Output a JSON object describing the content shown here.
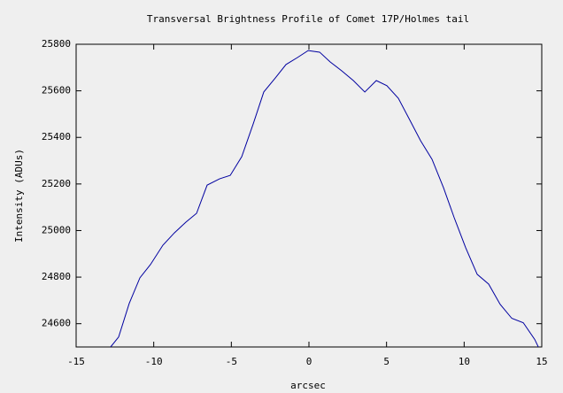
{
  "chart_data": {
    "type": "line",
    "title": "Transversal Brightness Profile of Comet 17P/Holmes tail",
    "x_label": "arcsec",
    "y_label": "Intensity (ADUs)",
    "x": [
      -12.78,
      -12.26,
      -11.58,
      -10.89,
      -10.21,
      -9.41,
      -8.67,
      -7.93,
      -7.24,
      -6.56,
      -5.76,
      -5.07,
      -4.33,
      -3.59,
      -2.91,
      -2.16,
      -1.48,
      -0.74,
      -0.05,
      0.69,
      1.37,
      2.11,
      2.86,
      3.6,
      4.34,
      5.02,
      5.76,
      6.51,
      7.19,
      7.93,
      8.67,
      9.36,
      10.1,
      10.84,
      11.58,
      12.32,
      13.07,
      13.81,
      14.55,
      14.78
    ],
    "series": [
      {
        "color": "#0000a0",
        "values": [
          24500,
          24543,
          24687,
          24797,
          24854,
          24937,
          24990,
          25036,
          25074,
          25195,
          25222,
          25237,
          25317,
          25458,
          25595,
          25656,
          25713,
          25743,
          25773,
          25766,
          25724,
          25686,
          25644,
          25595,
          25644,
          25622,
          25568,
          25473,
          25386,
          25306,
          25184,
          25055,
          24926,
          24812,
          24770,
          24683,
          24623,
          24604,
          24532,
          24500
        ]
      }
    ],
    "xlim": [
      -15,
      15
    ],
    "xticks": [
      -15,
      -10,
      -5,
      0,
      5,
      10,
      15
    ],
    "ylim": [
      24500,
      25800
    ],
    "yticks": [
      24600,
      24800,
      25000,
      25200,
      25400,
      25600,
      25800
    ],
    "grid": false
  }
}
